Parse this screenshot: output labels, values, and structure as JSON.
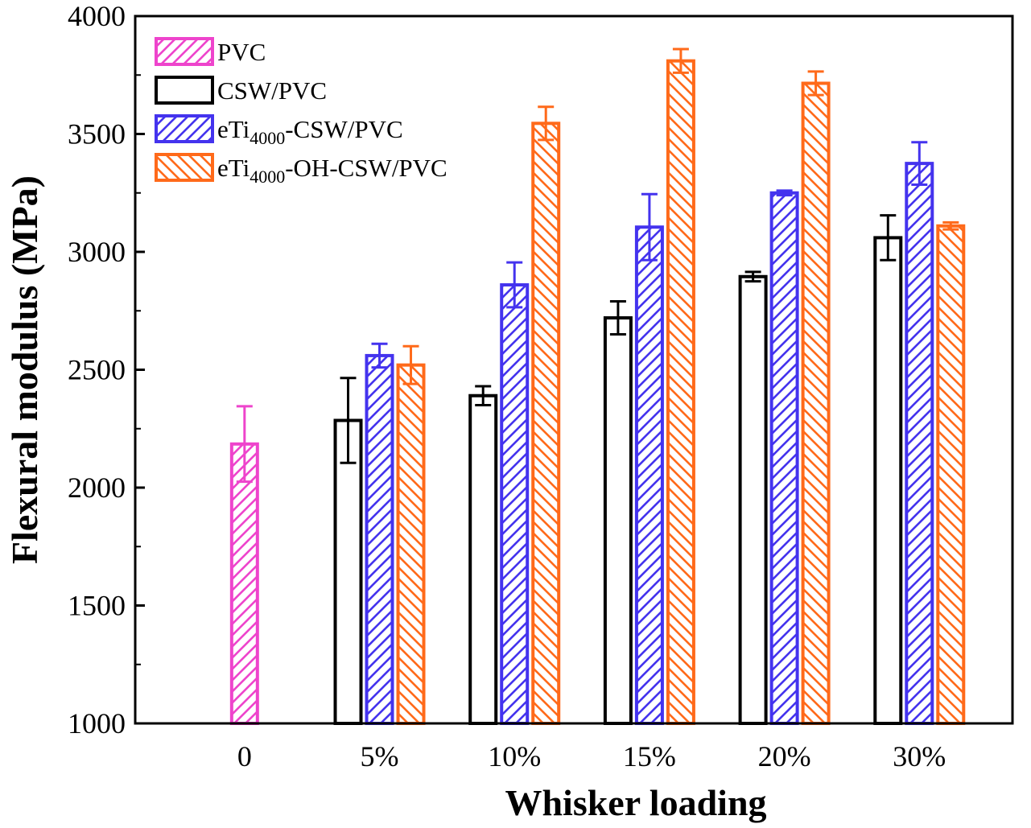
{
  "chart_data": {
    "type": "bar",
    "xlabel": "Whisker loading",
    "ylabel": "Flexural modulus (MPa)",
    "ylim": [
      1000,
      4000
    ],
    "yticks": [
      1000,
      1500,
      2000,
      2500,
      3000,
      3500,
      4000
    ],
    "categories": [
      "0",
      "5%",
      "10%",
      "15%",
      "20%",
      "30%"
    ],
    "legend_position": "top-left",
    "series": [
      {
        "name": "PVC",
        "name_parts": [
          "PVC"
        ],
        "color": "#ee44cc",
        "hatch": "forward",
        "values": [
          2185,
          null,
          null,
          null,
          null,
          null
        ],
        "errors": [
          160,
          null,
          null,
          null,
          null,
          null
        ]
      },
      {
        "name": "CSW/PVC",
        "name_parts": [
          "CSW/PVC"
        ],
        "color": "#000000",
        "hatch": "none",
        "values": [
          null,
          2285,
          2390,
          2720,
          2895,
          3060
        ],
        "errors": [
          null,
          180,
          40,
          70,
          20,
          95
        ]
      },
      {
        "name": "eTi4000-CSW/PVC",
        "name_parts": [
          "eTi",
          "4000",
          "-CSW/PVC"
        ],
        "color": "#4433ee",
        "hatch": "forward",
        "values": [
          null,
          2560,
          2860,
          3105,
          3250,
          3375
        ],
        "errors": [
          null,
          50,
          95,
          140,
          10,
          90
        ]
      },
      {
        "name": "eTi4000-OH-CSW/PVC",
        "name_parts": [
          "eTi",
          "4000",
          "-OH-CSW/PVC"
        ],
        "color": "#ff6a1a",
        "hatch": "backward",
        "values": [
          null,
          2520,
          3545,
          3810,
          3715,
          3110
        ],
        "errors": [
          null,
          80,
          70,
          50,
          50,
          15
        ]
      }
    ]
  }
}
